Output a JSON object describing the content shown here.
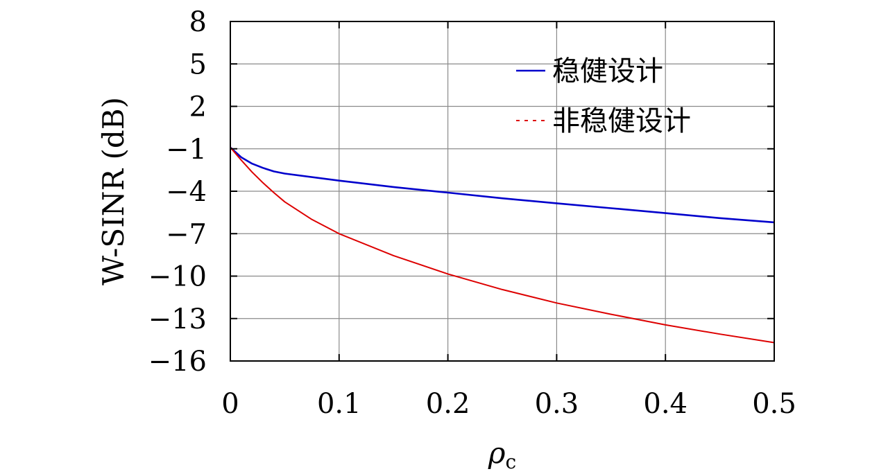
{
  "chart_data": {
    "type": "line",
    "title": "",
    "xlabel_main": "ρ",
    "xlabel_sub": "c",
    "ylabel": "W-SINR (dB)",
    "xlim": [
      0,
      0.5
    ],
    "ylim": [
      -16,
      8
    ],
    "xticks": [
      0,
      0.1,
      0.2,
      0.3,
      0.4,
      0.5
    ],
    "xtick_labels": [
      "0",
      "0.1",
      "0.2",
      "0.3",
      "0.4",
      "0.5"
    ],
    "yticks": [
      8,
      5,
      2,
      -1,
      -4,
      -7,
      -10,
      -13,
      -16
    ],
    "ytick_labels": [
      "8",
      "5",
      "2",
      "−1",
      "−4",
      "−7",
      "−10",
      "−13",
      "−16"
    ],
    "grid": true,
    "legend_position": "top-right",
    "series": [
      {
        "name": "稳健设计",
        "color": "#0000cc",
        "line_style": "solid",
        "x": [
          0,
          0.01,
          0.02,
          0.03,
          0.04,
          0.05,
          0.1,
          0.15,
          0.2,
          0.25,
          0.3,
          0.35,
          0.4,
          0.45,
          0.5
        ],
        "y": [
          -0.9,
          -1.6,
          -2.05,
          -2.35,
          -2.6,
          -2.75,
          -3.25,
          -3.7,
          -4.1,
          -4.5,
          -4.85,
          -5.2,
          -5.55,
          -5.9,
          -6.2
        ]
      },
      {
        "name": "非稳健设计",
        "color": "#dd0000",
        "line_style": "dotted",
        "x": [
          0,
          0.01,
          0.02,
          0.03,
          0.04,
          0.05,
          0.075,
          0.1,
          0.15,
          0.2,
          0.25,
          0.3,
          0.35,
          0.4,
          0.45,
          0.5
        ],
        "y": [
          -0.9,
          -1.8,
          -2.65,
          -3.4,
          -4.1,
          -4.75,
          -6.0,
          -7.0,
          -8.55,
          -9.85,
          -10.95,
          -11.9,
          -12.7,
          -13.45,
          -14.1,
          -14.7
        ]
      }
    ]
  }
}
